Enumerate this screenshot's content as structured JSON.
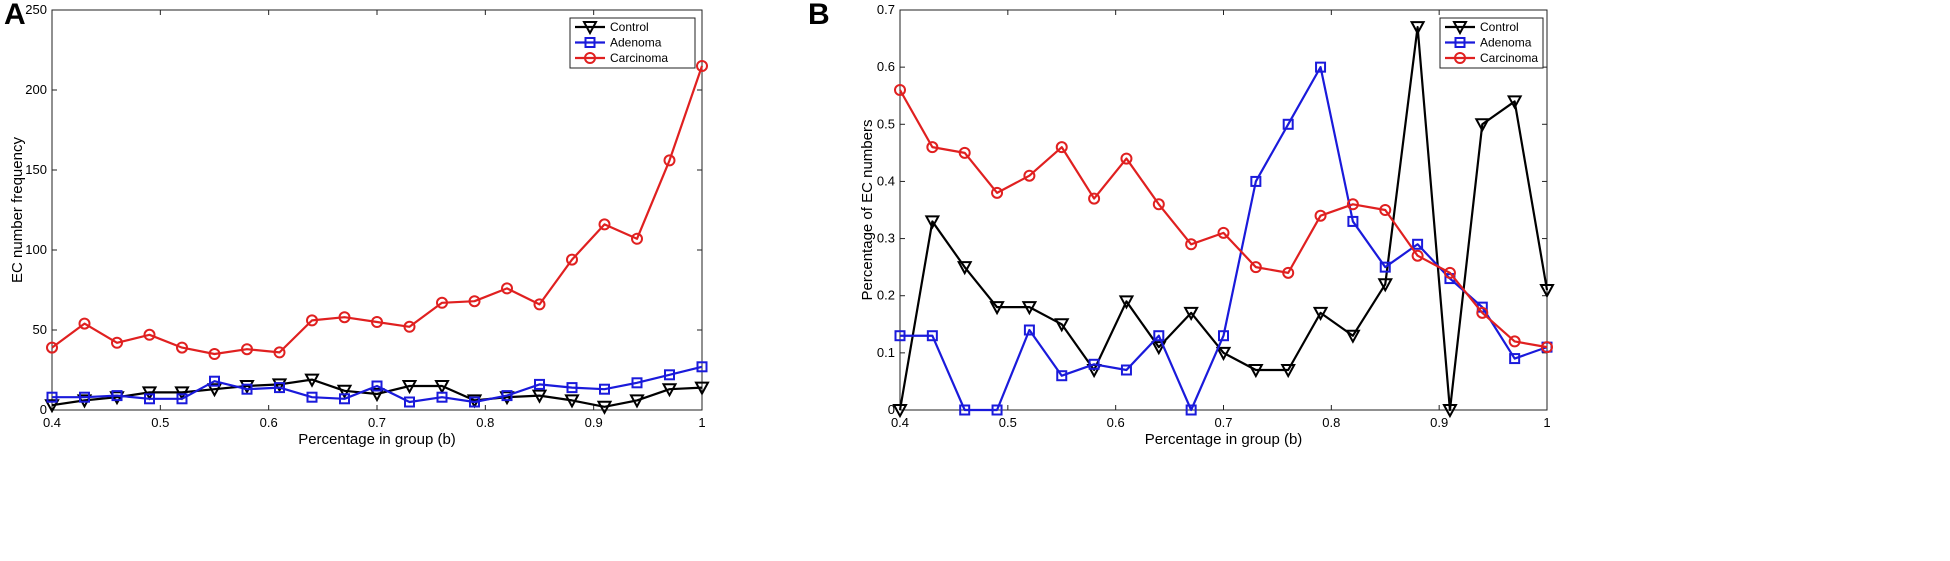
{
  "chart_data": [
    {
      "type": "line",
      "panel_label": "A",
      "xlabel": "Percentage in group (b)",
      "ylabel": "EC number frequency",
      "xlim": [
        0.4,
        1.0
      ],
      "ylim": [
        0,
        250
      ],
      "xticks": [
        0.4,
        0.5,
        0.6,
        0.7,
        0.8,
        0.9,
        1.0
      ],
      "xtick_labels": [
        "0.4",
        "0.5",
        "0.6",
        "0.7",
        "0.8",
        "0.9",
        "1"
      ],
      "yticks": [
        0,
        50,
        100,
        150,
        200,
        250
      ],
      "ytick_labels": [
        "0",
        "50",
        "100",
        "150",
        "200",
        "250"
      ],
      "legend_position": "top-right",
      "x": [
        0.4,
        0.43,
        0.46,
        0.49,
        0.52,
        0.55,
        0.58,
        0.61,
        0.64,
        0.67,
        0.7,
        0.73,
        0.76,
        0.79,
        0.82,
        0.85,
        0.88,
        0.91,
        0.94,
        0.97,
        1.0
      ],
      "series": [
        {
          "name": "Control",
          "color": "#000000",
          "marker": "triangle-down",
          "values": [
            3,
            6,
            8,
            11,
            11,
            13,
            15,
            16,
            19,
            12,
            10,
            15,
            15,
            6,
            8,
            9,
            6,
            2,
            6,
            13,
            14
          ]
        },
        {
          "name": "Adenoma",
          "color": "#1a1adb",
          "marker": "square",
          "values": [
            8,
            8,
            9,
            7,
            7,
            18,
            13,
            14,
            8,
            7,
            15,
            5,
            8,
            5,
            9,
            16,
            14,
            13,
            17,
            22,
            27
          ]
        },
        {
          "name": "Carcinoma",
          "color": "#e02020",
          "marker": "circle",
          "values": [
            39,
            54,
            42,
            47,
            39,
            35,
            38,
            36,
            56,
            58,
            55,
            52,
            67,
            68,
            76,
            66,
            94,
            116,
            107,
            156,
            215
          ]
        }
      ]
    },
    {
      "type": "line",
      "panel_label": "B",
      "xlabel": "Percentage in group (b)",
      "ylabel": "Percentage of EC numbers",
      "xlim": [
        0.4,
        1.0
      ],
      "ylim": [
        0,
        0.7
      ],
      "xticks": [
        0.4,
        0.5,
        0.6,
        0.7,
        0.8,
        0.9,
        1.0
      ],
      "xtick_labels": [
        "0.4",
        "0.5",
        "0.6",
        "0.7",
        "0.8",
        "0.9",
        "1"
      ],
      "yticks": [
        0,
        0.1,
        0.2,
        0.3,
        0.4,
        0.5,
        0.6,
        0.7
      ],
      "ytick_labels": [
        "0",
        "0.1",
        "0.2",
        "0.3",
        "0.4",
        "0.5",
        "0.6",
        "0.7"
      ],
      "legend_position": "top-right",
      "x": [
        0.4,
        0.43,
        0.46,
        0.49,
        0.52,
        0.55,
        0.58,
        0.61,
        0.64,
        0.67,
        0.7,
        0.73,
        0.76,
        0.79,
        0.82,
        0.85,
        0.88,
        0.91,
        0.94,
        0.97,
        1.0
      ],
      "series": [
        {
          "name": "Control",
          "color": "#000000",
          "marker": "triangle-down",
          "values": [
            0.0,
            0.33,
            0.25,
            0.18,
            0.18,
            0.15,
            0.07,
            0.19,
            0.11,
            0.17,
            0.1,
            0.07,
            0.07,
            0.17,
            0.13,
            0.22,
            0.67,
            0.0,
            0.5,
            0.54,
            0.21
          ]
        },
        {
          "name": "Adenoma",
          "color": "#1a1adb",
          "marker": "square",
          "values": [
            0.13,
            0.13,
            0.0,
            0.0,
            0.14,
            0.06,
            0.08,
            0.07,
            0.13,
            0.0,
            0.13,
            0.4,
            0.5,
            0.6,
            0.33,
            0.25,
            0.29,
            0.23,
            0.18,
            0.09,
            0.11
          ]
        },
        {
          "name": "Carcinoma",
          "color": "#e02020",
          "marker": "circle",
          "values": [
            0.56,
            0.46,
            0.45,
            0.38,
            0.41,
            0.46,
            0.37,
            0.44,
            0.36,
            0.29,
            0.31,
            0.25,
            0.24,
            0.34,
            0.36,
            0.35,
            0.27,
            0.24,
            0.17,
            0.12,
            0.11
          ]
        }
      ]
    }
  ]
}
